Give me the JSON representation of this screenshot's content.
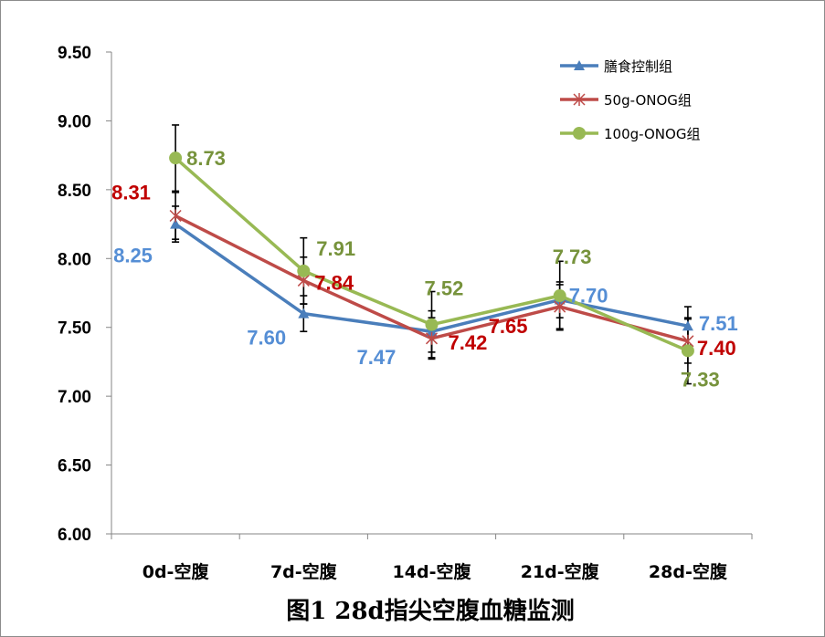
{
  "chart_data": {
    "type": "line",
    "title": "图1 28d指尖空腹血糖监测",
    "xlabel": "",
    "ylabel": "",
    "categories": [
      "0d-空腹",
      "7d-空腹",
      "14d-空腹",
      "21d-空腹",
      "28d-空腹"
    ],
    "ylim": [
      6.0,
      9.5
    ],
    "yticks": [
      "6.00",
      "6.50",
      "7.00",
      "7.50",
      "8.00",
      "8.50",
      "9.00",
      "9.50"
    ],
    "grid": false,
    "legend_position": "top-right",
    "series": [
      {
        "name": "膳食控制组",
        "values": [
          8.25,
          7.6,
          7.47,
          7.7,
          7.51
        ],
        "labels": [
          "8.25",
          "7.60",
          "7.47",
          "7.70",
          "7.51"
        ],
        "error": [
          0.13,
          0.13,
          0.15,
          0.13,
          0.14
        ],
        "color": "#4a7ebb",
        "label_color": "#558ed5",
        "marker": "triangle"
      },
      {
        "name": "50g-ONOG组",
        "values": [
          8.31,
          7.84,
          7.42,
          7.65,
          7.4
        ],
        "labels": [
          "8.31",
          "7.84",
          "7.42",
          "7.65",
          "7.40"
        ],
        "error": [
          0.17,
          0.17,
          0.15,
          0.16,
          0.16
        ],
        "color": "#be4b48",
        "label_color": "#c00000",
        "marker": "star"
      },
      {
        "name": "100g-ONOG组",
        "values": [
          8.73,
          7.91,
          7.52,
          7.73,
          7.33
        ],
        "labels": [
          "8.73",
          "7.91",
          "7.52",
          "7.73",
          "7.33"
        ],
        "error": [
          0.24,
          0.24,
          0.24,
          0.25,
          0.24
        ],
        "color": "#98b954",
        "label_color": "#77933c",
        "marker": "circle"
      }
    ]
  }
}
